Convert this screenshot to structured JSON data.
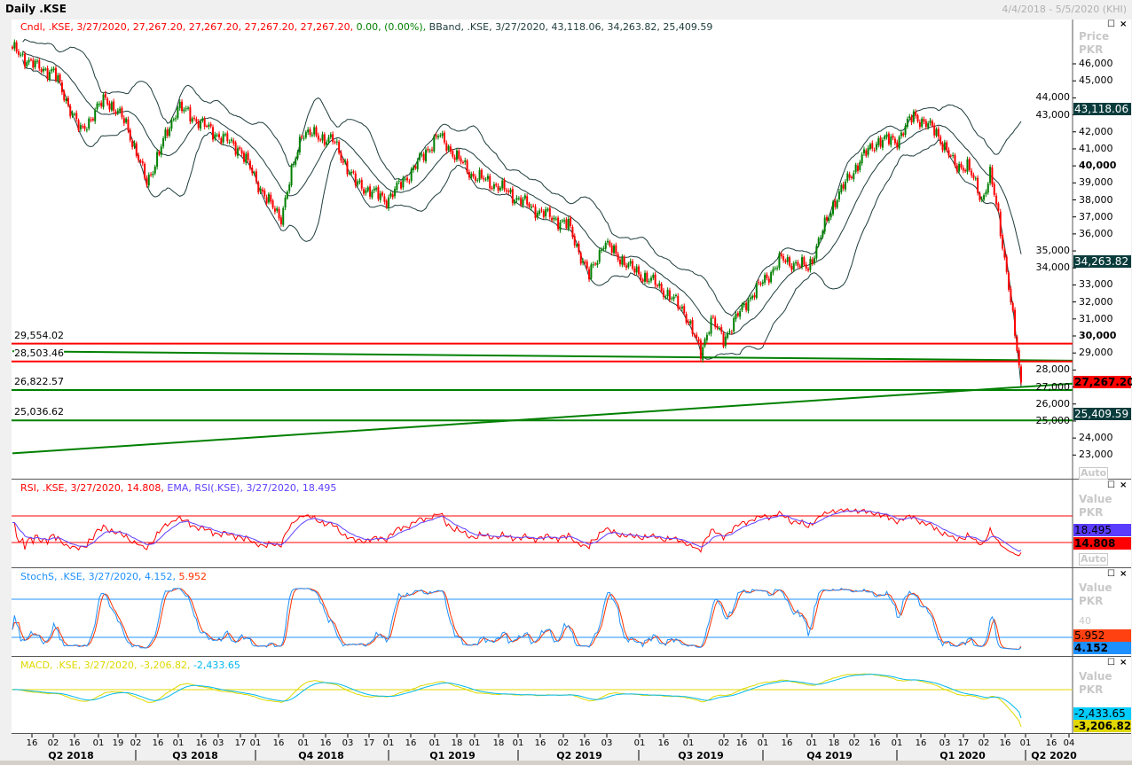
{
  "window": {
    "title": "Daily .KSE",
    "date_range": "4/4/2018 - 5/5/2020 (KHI)"
  },
  "price_panel": {
    "legend_cndl": "Cndl, .KSE, 3/27/2020, 27,267.20, 27,267.20, 27,267.20, 27,267.20,",
    "legend_change": "0.00,",
    "legend_pct": "(0.00%),",
    "legend_bband": "BBand, .KSE, 3/27/2020, 43,118.06, 34,263.82, 25,409.59",
    "axis_title": "Price",
    "axis_unit": "PKR",
    "auto_label": "Auto",
    "badges": {
      "bb_upper": "43,118.06",
      "bb_mid": "34,263.82",
      "last": "27,267.20",
      "bb_lower": "25,409.59"
    },
    "levels": [
      {
        "label": "29,554.02",
        "value": 29554.02,
        "color": "#ff0000"
      },
      {
        "label": "28,503.46",
        "value": 28503.46,
        "color": "#ff0000"
      },
      {
        "label": "26,822.57",
        "value": 26822.57,
        "color": "#008000"
      },
      {
        "label": "25,036.62",
        "value": 25036.62,
        "color": "#008000"
      }
    ],
    "axis_ticks": [
      "46,000",
      "45,000",
      "44,000",
      "43,000",
      "42,000",
      "41,000",
      "40,000",
      "39,000",
      "38,000",
      "37,000",
      "36,000",
      "35,000",
      "34,000",
      "33,000",
      "32,000",
      "31,000",
      "30,000",
      "29,000",
      "28,000",
      "27,000",
      "26,000",
      "25,000",
      "24,000",
      "23,000"
    ]
  },
  "rsi_panel": {
    "legend_rsi": "RSI, .KSE, 3/27/2020, 14.808,",
    "legend_ema": "EMA, RSI(.KSE), 3/27/2020, 18.495",
    "axis_title": "Value",
    "axis_unit": "PKR",
    "auto_label": "Auto",
    "badge_ema": "18.495",
    "badge_rsi": "14.808"
  },
  "stoch_panel": {
    "legend_k": "StochS, .KSE, 3/27/2020, 4.152,",
    "legend_d": "5.952",
    "axis_title": "Value",
    "axis_unit": "PKR",
    "tick_40": "40",
    "auto_label": "Auto",
    "badge_d": "5.952",
    "badge_k": "4.152"
  },
  "macd_panel": {
    "legend_macd": "MACD, .KSE, 3/27/2020, -3,206.82,",
    "legend_signal": "-2,433.65",
    "axis_title": "Value",
    "axis_unit": "PKR",
    "badge_signal": "-2,433.65",
    "badge_macd": "-3,206.82"
  },
  "x_axis": {
    "ticks": [
      "16",
      "02",
      "16",
      "01",
      "19",
      "02",
      "16",
      "01",
      "16",
      "03",
      "17",
      "01",
      "16",
      "01",
      "16",
      "03",
      "17",
      "01",
      "16",
      "01",
      "18",
      "01",
      "18",
      "01",
      "16",
      "02",
      "16",
      "03",
      "01",
      "16",
      "01",
      "02",
      "16",
      "01",
      "16",
      "01",
      "18",
      "02",
      "16",
      "01",
      "16",
      "03",
      "17",
      "02",
      "16",
      "01",
      "16",
      "04"
    ],
    "quarters": [
      "Q2 2018",
      "Q3 2018",
      "Q4 2018",
      "Q1 2019",
      "Q2 2019",
      "Q3 2019",
      "Q4 2019",
      "Q1 2020",
      "Q2 2020"
    ]
  },
  "colors": {
    "up": "#008000",
    "down": "#ff0000",
    "bband": "#1e3c3c",
    "rsi": "#ff0000",
    "rsi_ema": "#6040ff",
    "stoch_k": "#1e90ff",
    "stoch_d": "#ff3300",
    "macd": "#e0d800",
    "signal": "#00b8f0",
    "badge_dark": "#0a3c3c"
  },
  "chart_data": {
    "type": "candlestick",
    "title": "Daily .KSE",
    "ylabel": "Price (PKR)",
    "ylim": [
      22400,
      47400
    ],
    "x_unit": "trading day index from 4/4/2018",
    "last_date": "3/27/2020",
    "last_close": 27267.2,
    "close_keypoints": [
      [
        0,
        46900
      ],
      [
        12,
        45800
      ],
      [
        20,
        45500
      ],
      [
        33,
        42000
      ],
      [
        45,
        44000
      ],
      [
        55,
        42500
      ],
      [
        65,
        39000
      ],
      [
        80,
        43500
      ],
      [
        97,
        42000
      ],
      [
        110,
        41000
      ],
      [
        123,
        38000
      ],
      [
        130,
        37000
      ],
      [
        140,
        42000
      ],
      [
        155,
        41500
      ],
      [
        166,
        39000
      ],
      [
        181,
        38000
      ],
      [
        192,
        39500
      ],
      [
        206,
        41800
      ],
      [
        222,
        39500
      ],
      [
        235,
        38800
      ],
      [
        252,
        37500
      ],
      [
        269,
        36500
      ],
      [
        279,
        33500
      ],
      [
        286,
        35500
      ],
      [
        299,
        34000
      ],
      [
        312,
        33000
      ],
      [
        325,
        31500
      ],
      [
        333,
        29000
      ],
      [
        338,
        31000
      ],
      [
        344,
        29800
      ],
      [
        355,
        32000
      ],
      [
        372,
        34500
      ],
      [
        385,
        34000
      ],
      [
        398,
        38000
      ],
      [
        411,
        40500
      ],
      [
        419,
        41500
      ],
      [
        428,
        41500
      ],
      [
        436,
        43000
      ],
      [
        447,
        42000
      ],
      [
        456,
        40000
      ],
      [
        462,
        40000
      ],
      [
        469,
        38000
      ],
      [
        473,
        39500
      ],
      [
        477,
        37000
      ],
      [
        482,
        33000
      ],
      [
        485,
        30000
      ],
      [
        488,
        27267.2
      ]
    ],
    "bollinger": {
      "upper": 43118.06,
      "middle": 34263.82,
      "lower": 25409.59
    },
    "horizontal_lines": [
      29554.02,
      28503.46,
      26822.57,
      25036.62
    ],
    "trendlines": [
      {
        "from": [
          0,
          29100
        ],
        "to": [
          515,
          28550
        ]
      },
      {
        "from": [
          0,
          23100
        ],
        "to": [
          515,
          27200
        ]
      }
    ],
    "indicators": {
      "rsi": 14.808,
      "rsi_ema": 18.495,
      "stoch_k": 4.152,
      "stoch_d": 5.952,
      "macd": -3206.82,
      "signal": -2433.65,
      "rsi_levels": [
        30,
        70
      ],
      "stoch_levels": [
        20,
        80
      ]
    }
  }
}
